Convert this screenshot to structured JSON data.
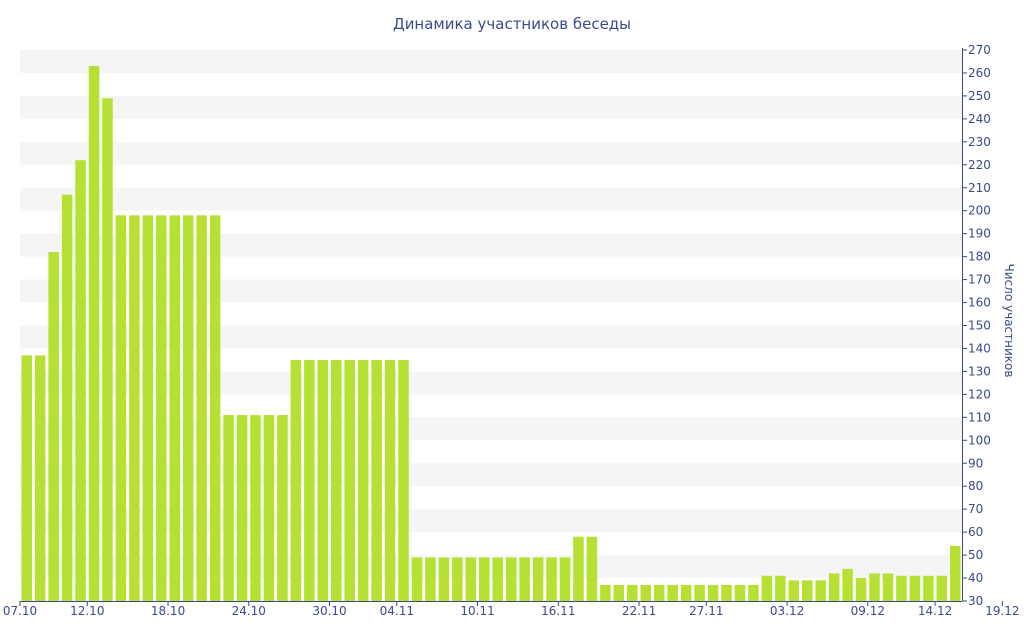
{
  "chart_data": {
    "type": "bar",
    "title": "Динамика участников беседы",
    "ylabel": "Число участников",
    "xlabel": "",
    "ylim": [
      30,
      270
    ],
    "y_ticks": [
      30,
      40,
      50,
      60,
      70,
      80,
      90,
      100,
      110,
      120,
      130,
      140,
      150,
      160,
      170,
      180,
      190,
      200,
      210,
      220,
      230,
      240,
      250,
      260,
      270
    ],
    "y_axis_position": "right",
    "grid": "alternating horizontal bands",
    "bar_color": "#b7e035",
    "x_tick_labels": [
      {
        "index": 0,
        "label": "07.10"
      },
      {
        "index": 5,
        "label": "12.10"
      },
      {
        "index": 11,
        "label": "18.10"
      },
      {
        "index": 17,
        "label": "24.10"
      },
      {
        "index": 23,
        "label": "30.10"
      },
      {
        "index": 28,
        "label": "04.11"
      },
      {
        "index": 34,
        "label": "10.11"
      },
      {
        "index": 40,
        "label": "16.11"
      },
      {
        "index": 46,
        "label": "22.11"
      },
      {
        "index": 51,
        "label": "27.11"
      },
      {
        "index": 57,
        "label": "03.12"
      },
      {
        "index": 63,
        "label": "09.12"
      },
      {
        "index": 68,
        "label": "14.12"
      },
      {
        "index": 73,
        "label": "19.12"
      }
    ],
    "values": [
      137,
      137,
      182,
      207,
      222,
      263,
      249,
      198,
      198,
      198,
      198,
      198,
      198,
      198,
      198,
      111,
      111,
      111,
      111,
      111,
      135,
      135,
      135,
      135,
      135,
      135,
      135,
      135,
      135,
      49,
      49,
      49,
      49,
      49,
      49,
      49,
      49,
      49,
      49,
      49,
      49,
      58,
      58,
      37,
      37,
      37,
      37,
      37,
      37,
      37,
      37,
      37,
      37,
      37,
      37,
      41,
      41,
      39,
      39,
      39,
      42,
      44,
      40,
      42,
      42,
      41,
      41,
      41,
      41,
      54
    ]
  }
}
